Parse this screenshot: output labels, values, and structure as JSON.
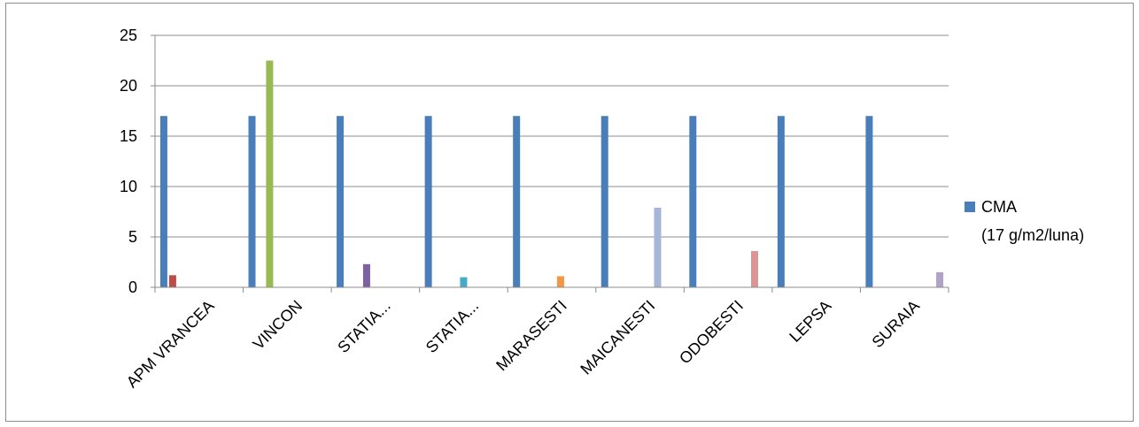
{
  "chart_data": {
    "type": "bar",
    "categories": [
      "APM VRANCEA",
      "VINCON",
      "STATIA...",
      "STATIA...",
      "MARASESTI",
      "MAICANESTI",
      "ODOBESTI",
      "LEPSA",
      "SURAIA"
    ],
    "ylim": [
      0,
      25
    ],
    "yticks": [
      0,
      5,
      10,
      15,
      20,
      25
    ],
    "grid": true,
    "legend_position": "right",
    "series": [
      {
        "name": "CMA (17 g/m2/luna)",
        "color": "#4a7ebb",
        "values": [
          17,
          17,
          17,
          17,
          17,
          17,
          17,
          17,
          17
        ]
      },
      {
        "color": "#be4b48",
        "values": [
          1.2,
          null,
          null,
          null,
          null,
          null,
          null,
          null,
          null
        ]
      },
      {
        "color": "#98b954",
        "values": [
          null,
          22.5,
          null,
          null,
          null,
          null,
          null,
          null,
          null
        ]
      },
      {
        "color": "#7d60a0",
        "values": [
          null,
          null,
          2.3,
          null,
          null,
          null,
          null,
          null,
          null
        ]
      },
      {
        "color": "#46aac5",
        "values": [
          null,
          null,
          null,
          1.0,
          null,
          null,
          null,
          null,
          null
        ]
      },
      {
        "color": "#f69545",
        "values": [
          null,
          null,
          null,
          null,
          1.1,
          null,
          null,
          null,
          null
        ]
      },
      {
        "color": "#a5b6d6",
        "values": [
          null,
          null,
          null,
          null,
          null,
          7.9,
          null,
          null,
          null
        ]
      },
      {
        "color": "#d99694",
        "values": [
          null,
          null,
          null,
          null,
          null,
          null,
          3.6,
          null,
          null
        ]
      },
      {
        "color": "#b3a2c7",
        "values": [
          null,
          null,
          null,
          null,
          null,
          null,
          null,
          null,
          1.5
        ]
      }
    ],
    "legend": {
      "line1": "CMA",
      "line2": "(17 g/m2/luna)"
    }
  }
}
